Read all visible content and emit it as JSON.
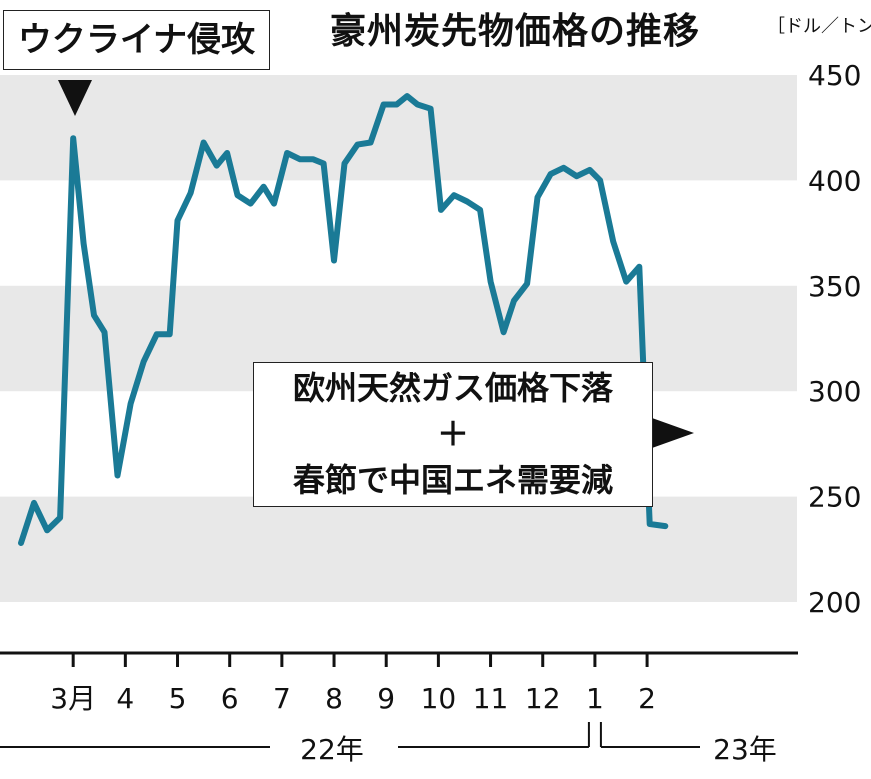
{
  "chart_data": {
    "type": "line",
    "title": "豪州炭先物価格の推移",
    "unit": "［ドル／トン］",
    "ylim": [
      200,
      450
    ],
    "yticks": [
      200,
      250,
      300,
      350,
      400,
      450
    ],
    "band_color": "#e8e8e8",
    "line_color": "#1a7a96",
    "x_domain": [
      0,
      13.8
    ],
    "month_ticks": [
      {
        "x": 1,
        "label": "3月"
      },
      {
        "x": 2,
        "label": "4"
      },
      {
        "x": 3,
        "label": "5"
      },
      {
        "x": 4,
        "label": "6"
      },
      {
        "x": 5,
        "label": "7"
      },
      {
        "x": 6,
        "label": "8"
      },
      {
        "x": 7,
        "label": "9"
      },
      {
        "x": 8,
        "label": "10"
      },
      {
        "x": 9,
        "label": "11"
      },
      {
        "x": 10,
        "label": "12"
      },
      {
        "x": 11,
        "label": "1"
      },
      {
        "x": 12,
        "label": "2"
      }
    ],
    "years": [
      {
        "label": "22年",
        "from": 0,
        "to": 11
      },
      {
        "label": "23年",
        "from": 11,
        "to": 13.8
      }
    ],
    "series": [
      {
        "points": [
          [
            0,
            228
          ],
          [
            0.25,
            247
          ],
          [
            0.5,
            234
          ],
          [
            0.75,
            240
          ],
          [
            1.0,
            420
          ],
          [
            1.2,
            370
          ],
          [
            1.4,
            336
          ],
          [
            1.6,
            328
          ],
          [
            1.85,
            260
          ],
          [
            2.1,
            294
          ],
          [
            2.35,
            314
          ],
          [
            2.6,
            327
          ],
          [
            2.85,
            327
          ],
          [
            3.0,
            381
          ],
          [
            3.25,
            394
          ],
          [
            3.5,
            418
          ],
          [
            3.75,
            407
          ],
          [
            3.95,
            413
          ],
          [
            4.15,
            393
          ],
          [
            4.4,
            389
          ],
          [
            4.65,
            397
          ],
          [
            4.85,
            389
          ],
          [
            5.1,
            413
          ],
          [
            5.35,
            410
          ],
          [
            5.6,
            410
          ],
          [
            5.8,
            408
          ],
          [
            6.0,
            362
          ],
          [
            6.2,
            408
          ],
          [
            6.45,
            417
          ],
          [
            6.7,
            418
          ],
          [
            6.95,
            436
          ],
          [
            7.2,
            436
          ],
          [
            7.4,
            440
          ],
          [
            7.6,
            436
          ],
          [
            7.85,
            434
          ],
          [
            8.05,
            386
          ],
          [
            8.3,
            393
          ],
          [
            8.55,
            390
          ],
          [
            8.8,
            386
          ],
          [
            9.0,
            352
          ],
          [
            9.25,
            328
          ],
          [
            9.45,
            343
          ],
          [
            9.7,
            351
          ],
          [
            9.9,
            392
          ],
          [
            10.15,
            403
          ],
          [
            10.4,
            406
          ],
          [
            10.65,
            402
          ],
          [
            10.9,
            405
          ],
          [
            11.1,
            400
          ],
          [
            11.35,
            371
          ],
          [
            11.6,
            352
          ],
          [
            11.85,
            359
          ],
          [
            12.05,
            237
          ],
          [
            12.35,
            236
          ]
        ]
      }
    ],
    "annotations": [
      {
        "text": "ウクライナ侵攻",
        "x": 1.0
      },
      {
        "text_lines": [
          "欧州天然ガス価格下落",
          "＋",
          "春節で中国エネ需要減"
        ],
        "x": 12.0
      }
    ]
  }
}
